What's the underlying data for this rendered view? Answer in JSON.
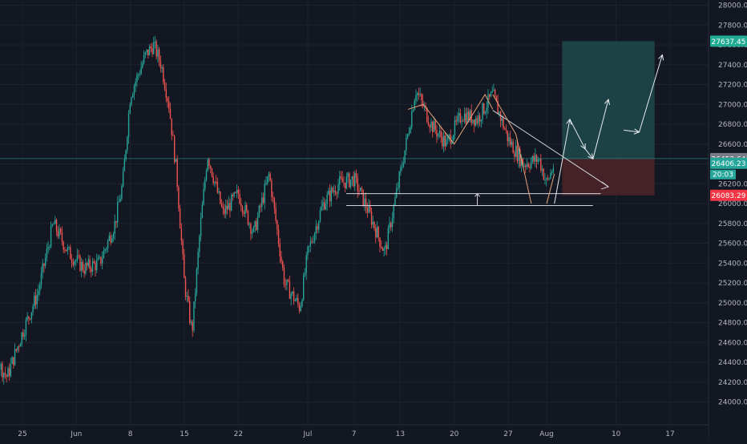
{
  "chart_data": {
    "type": "candlestick",
    "title": "",
    "xlabel": "",
    "ylabel": "",
    "ylim": [
      23900,
      28100
    ],
    "grid": true,
    "y_ticks": [
      "28000.00",
      "27800.00",
      "27600.00",
      "27400.00",
      "27200.00",
      "27000.00",
      "26800.00",
      "26600.00",
      "26400.00",
      "26200.00",
      "26000.00",
      "25800.00",
      "25600.00",
      "25400.00",
      "25200.00",
      "25000.00",
      "24800.00",
      "24600.00",
      "24400.00",
      "24200.00",
      "24000.00"
    ],
    "y_tick_values": [
      28000,
      27800,
      27600,
      27400,
      27200,
      27000,
      26800,
      26600,
      26400,
      26200,
      26000,
      25800,
      25600,
      25400,
      25200,
      25000,
      24800,
      24600,
      24400,
      24200,
      24000
    ],
    "x_ticks": [
      "25",
      "Jun",
      "8",
      "15",
      "22",
      "Jul",
      "7",
      "13",
      "20",
      "27",
      "Aug",
      "10",
      "17"
    ],
    "price_series": [
      {
        "date": "May 21",
        "close": 24500
      },
      {
        "date": "May 23",
        "close": 24250
      },
      {
        "date": "May 25",
        "close": 24700
      },
      {
        "date": "May 27",
        "close": 25100
      },
      {
        "date": "May 29",
        "close": 25800
      },
      {
        "date": "May 31",
        "close": 25500
      },
      {
        "date": "Jun 2",
        "close": 25350
      },
      {
        "date": "Jun 4",
        "close": 25400
      },
      {
        "date": "Jun 6",
        "close": 25800
      },
      {
        "date": "Jun 7",
        "close": 26200
      },
      {
        "date": "Jun 8",
        "close": 27100
      },
      {
        "date": "Jun 10",
        "close": 27500
      },
      {
        "date": "Jun 11",
        "close": 27600
      },
      {
        "date": "Jun 12",
        "close": 27400
      },
      {
        "date": "Jun 13",
        "close": 27000
      },
      {
        "date": "Jun 14",
        "close": 26300
      },
      {
        "date": "Jun 15",
        "close": 25200
      },
      {
        "date": "Jun 16",
        "close": 24700
      },
      {
        "date": "Jun 17",
        "close": 25700
      },
      {
        "date": "Jun 18",
        "close": 26500
      },
      {
        "date": "Jun 20",
        "close": 25900
      },
      {
        "date": "Jun 22",
        "close": 26100
      },
      {
        "date": "Jun 24",
        "close": 25700
      },
      {
        "date": "Jun 26",
        "close": 26300
      },
      {
        "date": "Jun 28",
        "close": 25200
      },
      {
        "date": "Jun 30",
        "close": 24950
      },
      {
        "date": "Jul 1",
        "close": 25500
      },
      {
        "date": "Jul 3",
        "close": 26000
      },
      {
        "date": "Jul 5",
        "close": 26200
      },
      {
        "date": "Jul 7",
        "close": 26250
      },
      {
        "date": "Jul 9",
        "close": 25900
      },
      {
        "date": "Jul 11",
        "close": 25500
      },
      {
        "date": "Jul 12",
        "close": 25900
      },
      {
        "date": "Jul 14",
        "close": 26700
      },
      {
        "date": "Jul 15",
        "close": 27150
      },
      {
        "date": "Jul 17",
        "close": 26800
      },
      {
        "date": "Jul 19",
        "close": 26600
      },
      {
        "date": "Jul 21",
        "close": 26900
      },
      {
        "date": "Jul 23",
        "close": 26850
      },
      {
        "date": "Jul 25",
        "close": 27100
      },
      {
        "date": "Jul 27",
        "close": 26650
      },
      {
        "date": "Jul 29",
        "close": 26400
      },
      {
        "date": "Jul 31",
        "close": 26450
      },
      {
        "date": "Aug 1",
        "close": 26200
      },
      {
        "date": "Aug 2",
        "close": 26406
      }
    ],
    "price_labels": {
      "last": {
        "text": "26453.64",
        "value": 26453.64,
        "color": "#787b86"
      },
      "current": {
        "text": "26406.23",
        "value": 26406.23,
        "color": "#26a69a"
      },
      "countdown": {
        "text": "20:03"
      },
      "target": {
        "text": "27637.45",
        "value": 27637.45,
        "color": "#22ab94"
      },
      "stop": {
        "text": "26083.29",
        "value": 26083.29,
        "color": "#f23645"
      }
    },
    "position": {
      "entry": 26453.64,
      "target": 27637.45,
      "stop": 26083.29,
      "start": "Aug 3",
      "end": "Aug 15"
    },
    "colors": {
      "up": "#26a69a",
      "down": "#ef5350",
      "background": "#131722",
      "grid": "#1e222d",
      "profit_zone": "#1f4a4b",
      "loss_zone": "#4a2329",
      "drawing": "#d1d4dc",
      "pattern": "#e6a37a"
    }
  }
}
